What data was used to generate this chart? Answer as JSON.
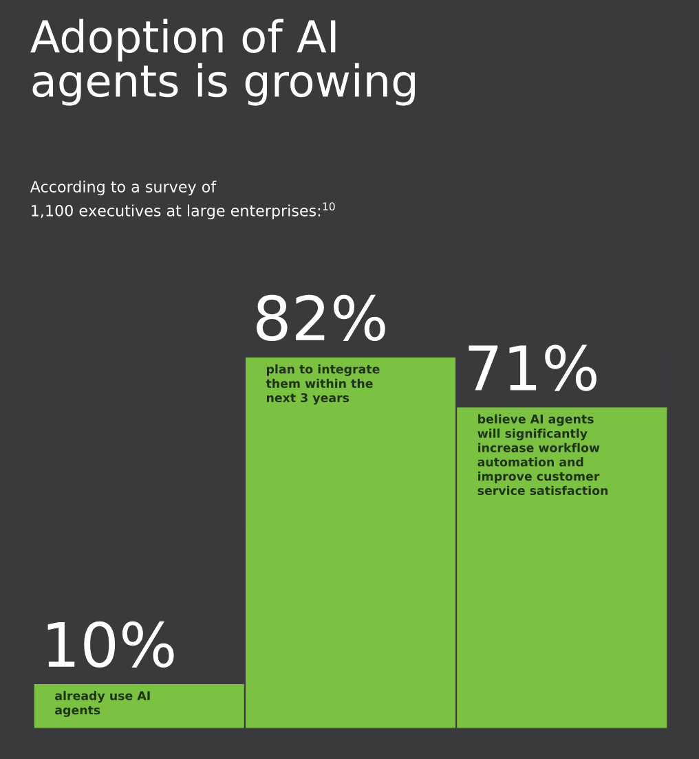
{
  "chart_data": {
    "type": "bar",
    "title": "Adoption of AI\nagents is growing",
    "subtitle": "According to a survey of\n1,100 executives at large enterprises:$^{10}$",
    "categories": [
      "already use AI\nagents",
      "plan to integrate\nthem within the\nnext 3 years",
      "believe AI agents\nwill significantly\nincrease workflow\nautomation and\nimprove customer\nservice satisfaction"
    ],
    "values": [
      10,
      82,
      71
    ],
    "color": "#7cc242",
    "value_labels": [
      "10%",
      "82%",
      "71%"
    ],
    "legend": false
  }
}
